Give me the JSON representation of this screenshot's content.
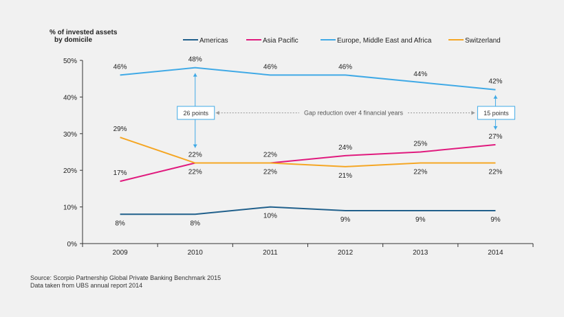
{
  "chart_data": {
    "type": "line",
    "ylabel_line1": "% of invested assets",
    "ylabel_line2": "by domicile",
    "categories": [
      "2009",
      "2010",
      "2011",
      "2012",
      "2013",
      "2014"
    ],
    "ylim": [
      0,
      50
    ],
    "yticks": [
      0,
      10,
      20,
      30,
      40,
      50
    ],
    "ytick_labels": [
      "0%",
      "10%",
      "20%",
      "30%",
      "40%",
      "50%"
    ],
    "legend_position": "top",
    "series": [
      {
        "name": "Americas",
        "color": "#1f5f8b",
        "values": [
          8,
          8,
          10,
          9,
          9,
          9
        ],
        "labels": [
          "8%",
          "8%",
          "10%",
          "9%",
          "9%",
          "9%"
        ],
        "label_pos": [
          "below",
          "below",
          "below",
          "below",
          "below",
          "below"
        ]
      },
      {
        "name": "Asia Pacific",
        "color": "#e0197d",
        "values": [
          17,
          22,
          22,
          24,
          25,
          27
        ],
        "labels": [
          "17%",
          "22%",
          "22%",
          "24%",
          "25%",
          "27%"
        ],
        "label_pos": [
          "above",
          "above",
          "above",
          "above",
          "above",
          "above"
        ]
      },
      {
        "name": "Europe, Middle East and Africa",
        "color": "#3fa9e6",
        "values": [
          46,
          48,
          46,
          46,
          44,
          42
        ],
        "labels": [
          "46%",
          "48%",
          "46%",
          "46%",
          "44%",
          "42%"
        ],
        "label_pos": [
          "above",
          "above",
          "above",
          "above",
          "above",
          "above"
        ]
      },
      {
        "name": "Switzerland",
        "color": "#f5a623",
        "values": [
          29,
          22,
          22,
          21,
          22,
          22
        ],
        "labels": [
          "29%",
          "22%",
          "22%",
          "21%",
          "22%",
          "22%"
        ],
        "label_pos": [
          "above",
          "below",
          "below",
          "below",
          "below",
          "below"
        ]
      }
    ],
    "annotations": {
      "gap_2010": "26 points",
      "gap_2014": "15 points",
      "gap_text": "Gap reduction over 4 financial years"
    }
  },
  "source_line1": "Source: Scorpio Partnership Global Private Banking Benchmark 2015",
  "source_line2": "Data taken from UBS annual report 2014"
}
